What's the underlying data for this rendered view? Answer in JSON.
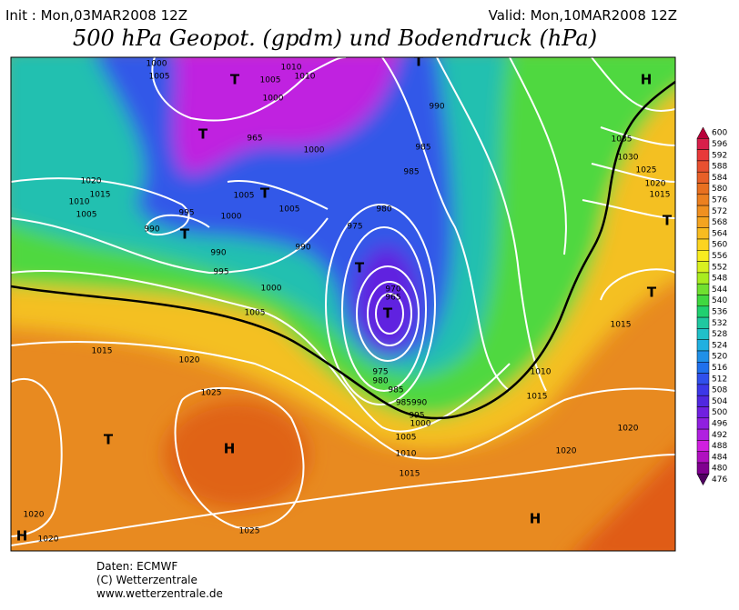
{
  "header": {
    "init": "Init : Mon,03MAR2008 12Z",
    "valid": "Valid: Mon,10MAR2008 12Z",
    "title": "500 hPa Geopot. (gpdm) und Bodendruck (hPa)"
  },
  "colorbar": {
    "values": [
      600,
      596,
      592,
      588,
      584,
      580,
      576,
      572,
      568,
      564,
      560,
      556,
      552,
      548,
      544,
      540,
      536,
      532,
      528,
      524,
      520,
      516,
      512,
      508,
      504,
      500,
      496,
      492,
      488,
      484,
      480,
      476
    ],
    "colors": [
      "#b8003a",
      "#d8204a",
      "#e83a3a",
      "#e85030",
      "#e86028",
      "#e87020",
      "#ec8020",
      "#f09020",
      "#f4a420",
      "#f8bc20",
      "#fcd420",
      "#f8ec20",
      "#d8f020",
      "#a8ec20",
      "#70e030",
      "#40d840",
      "#20d070",
      "#20c8a0",
      "#20c0c8",
      "#20b0e0",
      "#2090e8",
      "#2070ec",
      "#3050ec",
      "#3c38e8",
      "#5028e0",
      "#7020e0",
      "#9020e0",
      "#b020e0",
      "#d020e0",
      "#b010c0",
      "#800090",
      "#500060"
    ]
  },
  "map": {
    "labels": [
      "1000",
      "1005",
      "1010",
      "1010",
      "1005",
      "1000",
      "965",
      "1000",
      "990",
      "985",
      "985",
      "1020",
      "1015",
      "1010",
      "1005",
      "995",
      "1005",
      "1000",
      "1005",
      "980",
      "975",
      "990",
      "990",
      "995",
      "990",
      "1000",
      "1005",
      "970",
      "965",
      "1015",
      "1020",
      "1025",
      "975",
      "980",
      "985",
      "985990",
      "995",
      "1000",
      "1005",
      "1010",
      "1015",
      "1010",
      "1015",
      "1020",
      "1020",
      "1035",
      "1030",
      "1025",
      "1020",
      "1015",
      "1015",
      "1025",
      "1020",
      "1020",
      "H",
      "T",
      "T",
      "T",
      "T",
      "T",
      "T",
      "T",
      "T",
      "T",
      "H",
      "H",
      "H",
      "T"
    ]
  },
  "footer": {
    "source": "Daten: ECMWF",
    "copyright": "(C) Wetterzentrale",
    "url": "www.wetterzentrale.de"
  }
}
